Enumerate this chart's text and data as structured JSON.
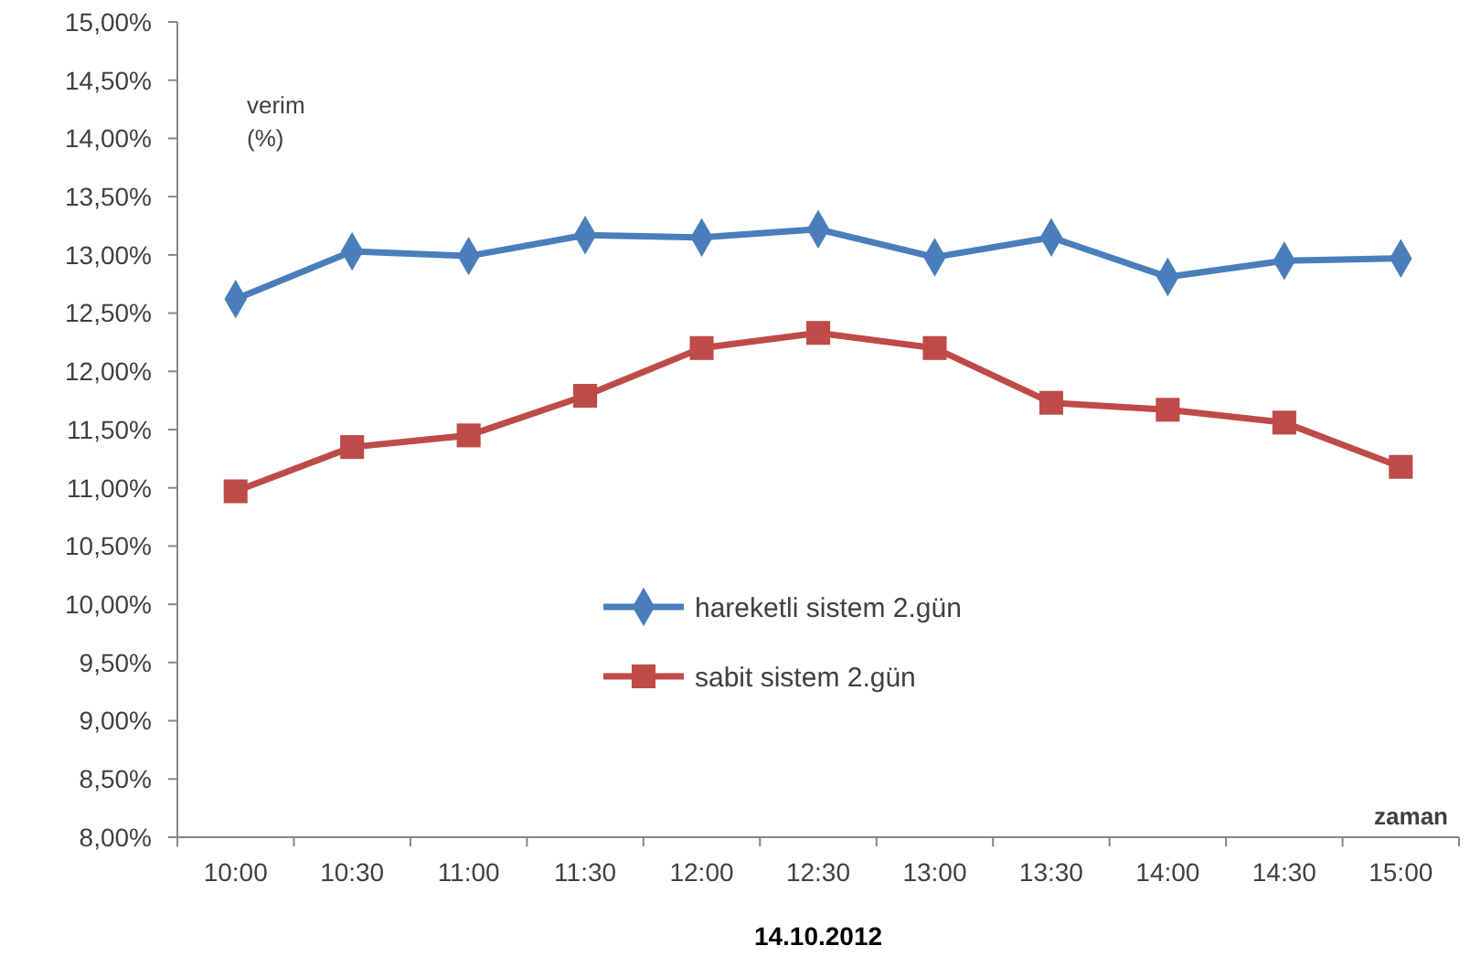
{
  "chart_data": {
    "type": "line",
    "categories": [
      "10:00",
      "10:30",
      "11:00",
      "11:30",
      "12:00",
      "12:30",
      "13:00",
      "13:30",
      "14:00",
      "14:30",
      "15:00"
    ],
    "series": [
      {
        "name": "hareketli sistem 2.gün",
        "color": "#4a7ebb",
        "marker": "diamond",
        "values": [
          12.62,
          13.03,
          12.99,
          13.17,
          13.15,
          13.22,
          12.98,
          13.15,
          12.81,
          12.95,
          12.97
        ]
      },
      {
        "name": "sabit sistem 2.gün",
        "color": "#be4b48",
        "marker": "square",
        "values": [
          10.97,
          11.35,
          11.45,
          11.79,
          12.2,
          12.33,
          12.2,
          11.73,
          11.67,
          11.56,
          11.18
        ]
      }
    ],
    "ylim": [
      8,
      15
    ],
    "yticks": [
      {
        "value": 8,
        "label": "8,00%"
      },
      {
        "value": 8.5,
        "label": "8,50%"
      },
      {
        "value": 9,
        "label": "9,00%"
      },
      {
        "value": 9.5,
        "label": "9,50%"
      },
      {
        "value": 10,
        "label": "10,00%"
      },
      {
        "value": 10.5,
        "label": "10,50%"
      },
      {
        "value": 11,
        "label": "11,00%"
      },
      {
        "value": 11.5,
        "label": "11,50%"
      },
      {
        "value": 12,
        "label": "12,00%"
      },
      {
        "value": 12.5,
        "label": "12,50%"
      },
      {
        "value": 13,
        "label": "13,00%"
      },
      {
        "value": 13.5,
        "label": "13,50%"
      },
      {
        "value": 14,
        "label": "14,00%"
      },
      {
        "value": 14.5,
        "label": "14,50%"
      },
      {
        "value": 15,
        "label": "15,00%"
      }
    ],
    "ylabel": "verim\n(%)",
    "xlabel": "zaman",
    "annotations": [
      "14.10.2012"
    ],
    "legend": "center",
    "grid": false,
    "line_style": "solid"
  }
}
